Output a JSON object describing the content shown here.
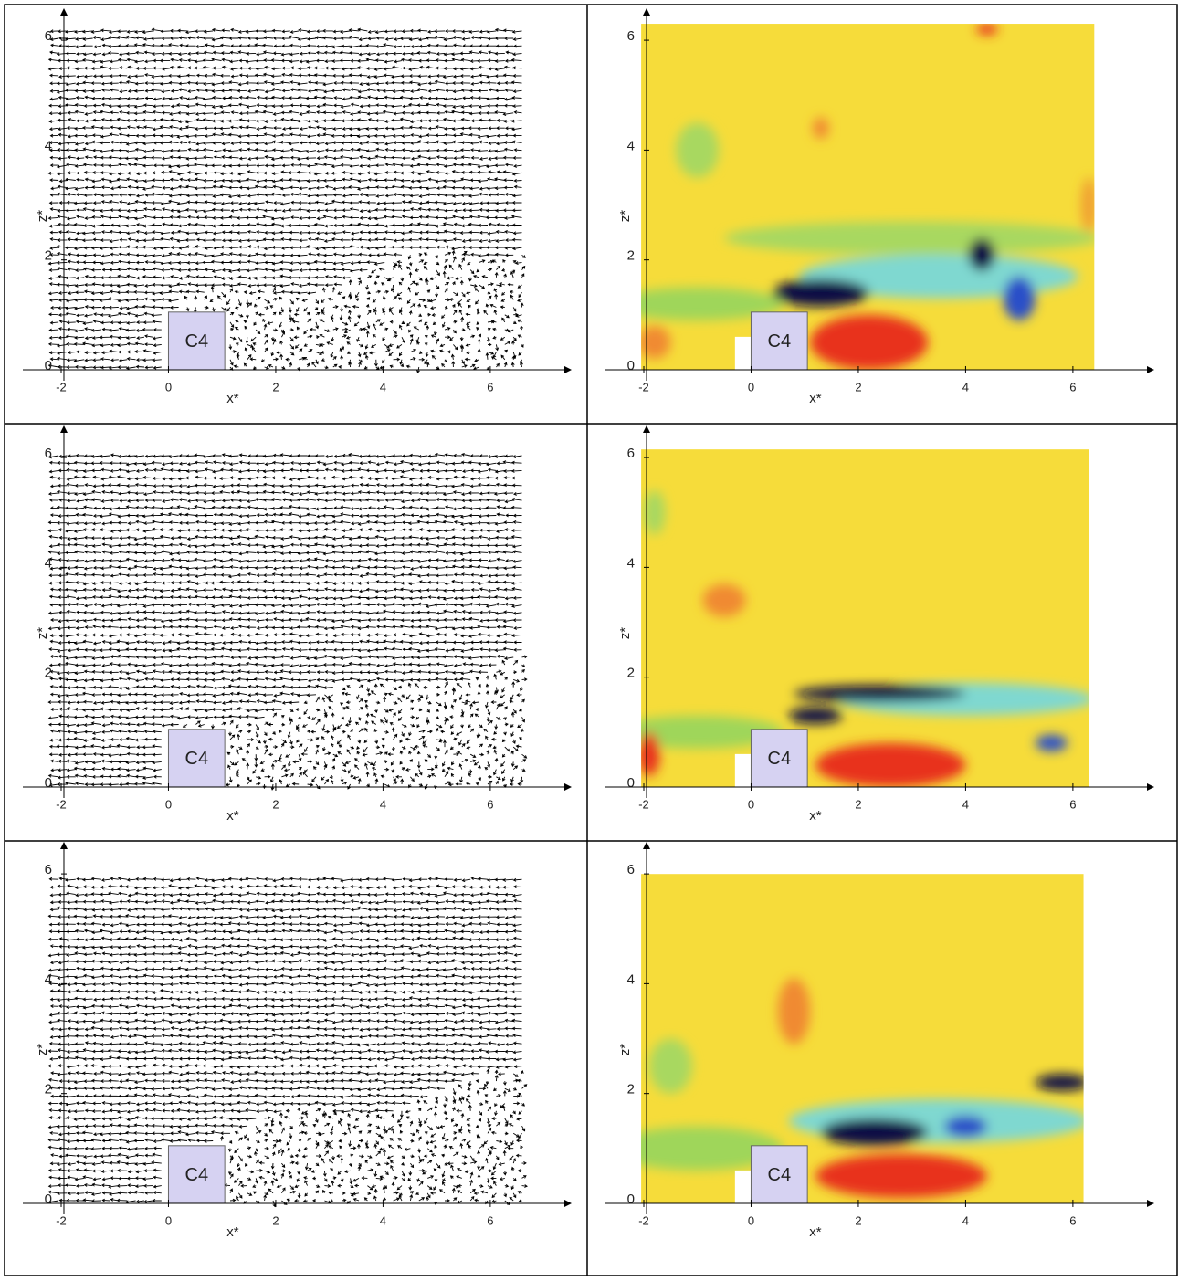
{
  "chart_data": [
    {
      "type": "quiver",
      "xlim": [
        -2.8,
        7.5
      ],
      "ylim": [
        -0.2,
        6.6
      ],
      "xticks": [
        -2,
        0,
        2,
        4,
        6
      ],
      "yticks": [
        0,
        2,
        4,
        6
      ],
      "x_label": "x*",
      "y_label": "z*",
      "annotation": "C4"
    },
    {
      "type": "contour",
      "xlim": [
        -2.8,
        7.5
      ],
      "ylim": [
        -0.2,
        6.6
      ],
      "xticks": [
        -2,
        0,
        2,
        4,
        6
      ],
      "yticks": [
        0,
        2,
        4,
        6
      ],
      "x_label": "x*",
      "y_label": "z*",
      "annotation": "C4"
    },
    {
      "type": "quiver",
      "xlim": [
        -2.8,
        7.5
      ],
      "ylim": [
        -0.2,
        6.6
      ],
      "xticks": [
        -2,
        0,
        2,
        4,
        6
      ],
      "yticks": [
        0,
        2,
        4,
        6
      ],
      "x_label": "x*",
      "y_label": "z*",
      "annotation": "C4"
    },
    {
      "type": "contour",
      "xlim": [
        -2.8,
        7.5
      ],
      "ylim": [
        -0.2,
        6.6
      ],
      "xticks": [
        -2,
        0,
        2,
        4,
        6
      ],
      "yticks": [
        0,
        2,
        4,
        6
      ],
      "x_label": "x*",
      "y_label": "z*",
      "annotation": "C4"
    },
    {
      "type": "quiver",
      "xlim": [
        -2.8,
        7.5
      ],
      "ylim": [
        -0.2,
        6.6
      ],
      "xticks": [
        -2,
        0,
        2,
        4,
        6
      ],
      "yticks": [
        0,
        2,
        4,
        6
      ],
      "x_label": "x*",
      "y_label": "z*",
      "annotation": "C4"
    },
    {
      "type": "contour",
      "xlim": [
        -2.8,
        7.5
      ],
      "ylim": [
        -0.2,
        6.6
      ],
      "xticks": [
        -2,
        0,
        2,
        4,
        6
      ],
      "yticks": [
        0,
        2,
        4,
        6
      ],
      "x_label": "x*",
      "y_label": "z*",
      "annotation": "C4"
    }
  ]
}
